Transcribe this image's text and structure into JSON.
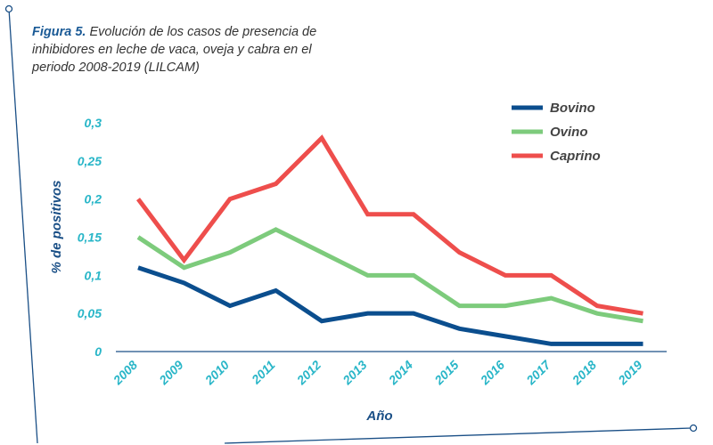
{
  "caption": {
    "label": "Figura 5.",
    "text": " Evolución de los casos de presencia de inhibidores en leche de vaca, oveja y cabra en el periodo 2008-2019 (LILCAM)"
  },
  "colors": {
    "bovino": "#0b4e8e",
    "ovino": "#7dcb7c",
    "caprino": "#ee4e4c",
    "ticks": "#29b6c8",
    "axis_title": "#1a4f86"
  },
  "chart_data": {
    "type": "line",
    "title": "",
    "xlabel": "Año",
    "ylabel": "% de positivos",
    "categories": [
      "2008",
      "2009",
      "2010",
      "2011",
      "2012",
      "2013",
      "2014",
      "2015",
      "2016",
      "2017",
      "2018",
      "2019"
    ],
    "ylim": [
      0,
      0.3
    ],
    "yticks": [
      0,
      0.05,
      0.1,
      0.15,
      0.2,
      0.25,
      0.3
    ],
    "ytick_labels": [
      "0",
      "0,05",
      "0,1",
      "0,15",
      "0,2",
      "0,25",
      "0,3"
    ],
    "grid": false,
    "legend_position": "top-right",
    "series": [
      {
        "name": "Bovino",
        "values": [
          0.11,
          0.09,
          0.06,
          0.08,
          0.04,
          0.05,
          0.05,
          0.03,
          0.02,
          0.01,
          0.01,
          0.01
        ]
      },
      {
        "name": "Ovino",
        "values": [
          0.15,
          0.11,
          0.13,
          0.16,
          0.13,
          0.1,
          0.1,
          0.06,
          0.06,
          0.07,
          0.05,
          0.04
        ]
      },
      {
        "name": "Caprino",
        "values": [
          0.2,
          0.12,
          0.2,
          0.22,
          0.28,
          0.18,
          0.18,
          0.13,
          0.1,
          0.1,
          0.06,
          0.05
        ]
      }
    ]
  }
}
